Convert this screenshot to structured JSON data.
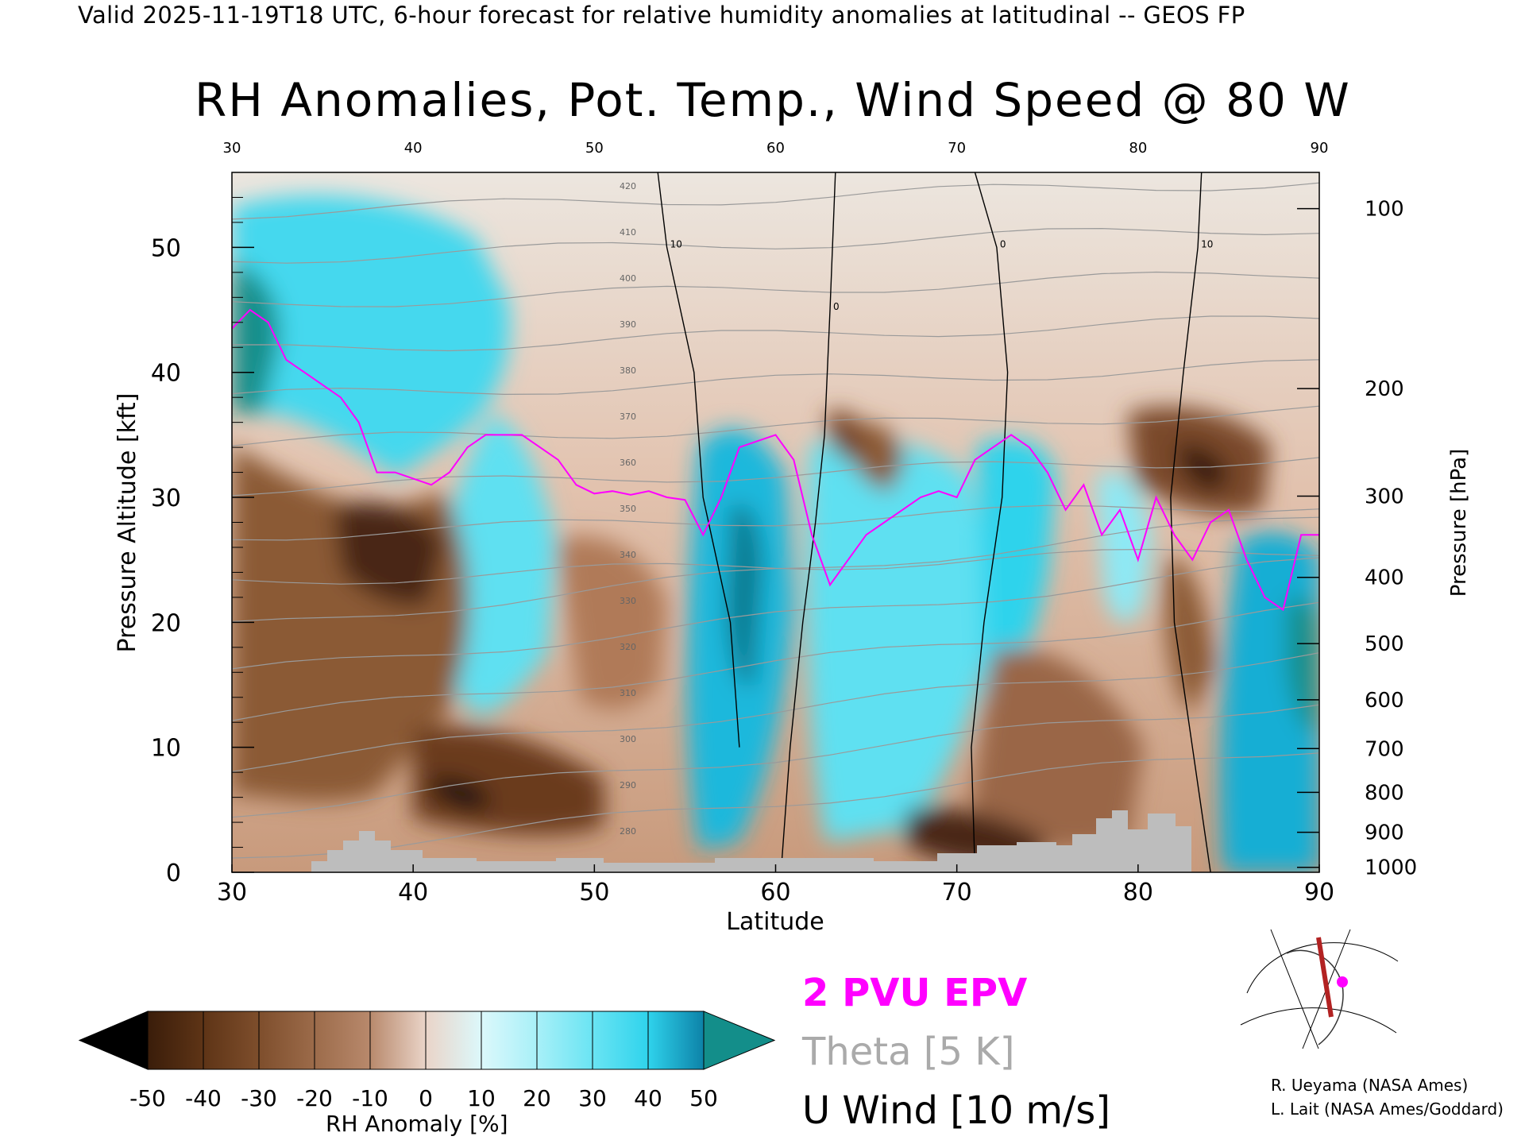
{
  "header": {
    "valid_line": "Valid 2025-11-19T18 UTC, 6-hour forecast for relative humidity anomalies at latitudinal -- GEOS FP"
  },
  "chart_data": {
    "type": "heatmap",
    "title": "RH Anomalies, Pot. Temp., Wind Speed @ 80 W",
    "xlabel": "Latitude",
    "ylabel_left": "Pressure Altitude [kft]",
    "ylabel_right": "Pressure [hPa]",
    "xlim": [
      30,
      90
    ],
    "ylim": [
      0,
      56
    ],
    "x_ticks": [
      "30",
      "40",
      "50",
      "60",
      "70",
      "80",
      "90"
    ],
    "x_tick_values": [
      30,
      40,
      50,
      60,
      70,
      80,
      90
    ],
    "y_ticks": [
      "0",
      "10",
      "20",
      "30",
      "40",
      "50"
    ],
    "y_tick_values": [
      0,
      10,
      20,
      30,
      40,
      50
    ],
    "pressure_ticks": [
      {
        "label": "100",
        "kft": 53.1
      },
      {
        "label": "200",
        "kft": 38.7
      },
      {
        "label": "300",
        "kft": 30.1
      },
      {
        "label": "400",
        "kft": 23.6
      },
      {
        "label": "500",
        "kft": 18.3
      },
      {
        "label": "600",
        "kft": 13.8
      },
      {
        "label": "700",
        "kft": 9.9
      },
      {
        "label": "800",
        "kft": 6.4
      },
      {
        "label": "900",
        "kft": 3.2
      },
      {
        "label": "1000",
        "kft": 0.4
      }
    ],
    "colorbar": {
      "label": "RH Anomaly [%]",
      "ticks": [
        "-50",
        "-40",
        "-30",
        "-20",
        "-10",
        "0",
        "10",
        "20",
        "30",
        "40",
        "50"
      ],
      "colors": [
        "#000000",
        "#3a1d0a",
        "#5e3416",
        "#7e4e2c",
        "#9c6b4a",
        "#b8896c",
        "#d2ab94",
        "#ead4c8",
        "#dcf8fb",
        "#a8f0f8",
        "#6ae4f3",
        "#2fd3ec",
        "#14aed4",
        "#0d82a8",
        "#138e8a"
      ]
    },
    "series": [
      {
        "name": "2 PVU EPV",
        "color": "#ff00ff",
        "x": [
          30,
          31,
          32,
          33,
          34,
          35,
          36,
          37,
          38,
          39,
          40,
          41,
          42,
          43,
          44,
          45,
          46,
          47,
          48,
          49,
          50,
          51,
          52,
          53,
          54,
          55,
          56,
          57,
          58,
          59,
          60,
          61,
          62,
          63,
          64,
          65,
          66,
          67,
          68,
          69,
          70,
          71,
          72,
          73,
          74,
          75,
          76,
          77,
          78,
          79,
          80,
          81,
          82,
          83,
          84,
          85,
          86,
          87,
          88,
          89,
          90
        ],
        "y": [
          43.5,
          45,
          44,
          41,
          40,
          39,
          38,
          36,
          32,
          32,
          31.5,
          31,
          32,
          34,
          35,
          35,
          35,
          34,
          33,
          31,
          30.3,
          30.5,
          30.2,
          30.5,
          30,
          29.8,
          27,
          30,
          34,
          34.5,
          35,
          33,
          27,
          23,
          25,
          27,
          28,
          29,
          30,
          30.5,
          30,
          33,
          34,
          35,
          34,
          32,
          29,
          31,
          27,
          29,
          25,
          30,
          27,
          25,
          28,
          29,
          25,
          22,
          21,
          27,
          27
        ]
      },
      {
        "name": "U Wind [10 m/s]",
        "color": "#000000",
        "contours": [
          {
            "label": "10",
            "x": [
              53.5,
              54,
              55.5,
              56,
              57.5,
              58
            ],
            "y": [
              56,
              50,
              40,
              30,
              20,
              10
            ]
          },
          {
            "label": "0",
            "x": [
              63.3,
              63,
              62.7,
              62.2,
              61.5,
              60.8,
              60.3
            ],
            "y": [
              56,
              45,
              35,
              28,
              20,
              10,
              0
            ]
          },
          {
            "label": "0",
            "x": [
              71,
              72.2,
              72.8,
              72.5,
              71.5,
              70.8,
              71
            ],
            "y": [
              56,
              50,
              40,
              30,
              20,
              10,
              0
            ]
          },
          {
            "label": "10",
            "x": [
              83.5,
              83.3,
              82.5,
              81.8,
              82,
              83,
              84
            ],
            "y": [
              56,
              50,
              40,
              30,
              20,
              10,
              0
            ]
          }
        ]
      }
    ],
    "theta_labels": [
      "280",
      "290",
      "300",
      "310",
      "320",
      "330",
      "340",
      "350",
      "360",
      "370",
      "380",
      "390",
      "400",
      "410",
      "420"
    ],
    "legend": {
      "epv": "2 PVU EPV",
      "theta": "Theta [5 K]",
      "uwind": "U Wind [10 m/s]"
    },
    "grid": false,
    "legend_position": "bottom-center"
  },
  "credits": {
    "line1": "R. Ueyama (NASA Ames)",
    "line2": "L. Lait (NASA Ames/Goddard)"
  }
}
